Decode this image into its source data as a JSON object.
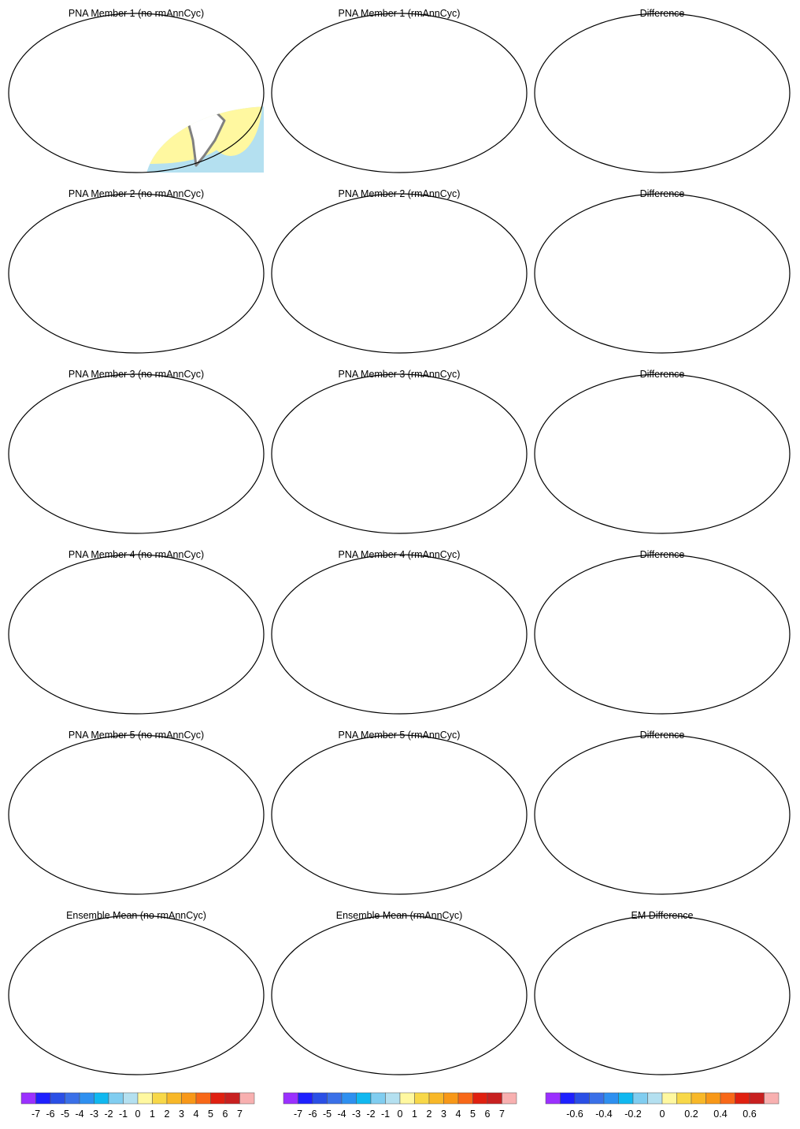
{
  "panels": [
    {
      "title": "PNA Member 1 (no rmAnnCyc)"
    },
    {
      "title": "PNA Member 1 (rmAnnCyc)"
    },
    {
      "title": "Difference"
    },
    {
      "title": "PNA Member 2 (no rmAnnCyc)"
    },
    {
      "title": "PNA Member 2 (rmAnnCyc)"
    },
    {
      "title": "Difference"
    },
    {
      "title": "PNA Member 3 (no rmAnnCyc)"
    },
    {
      "title": "PNA Member 3 (rmAnnCyc)"
    },
    {
      "title": "Difference"
    },
    {
      "title": "PNA Member 4 (no rmAnnCyc)"
    },
    {
      "title": "PNA Member 4 (rmAnnCyc)"
    },
    {
      "title": "Difference"
    },
    {
      "title": "PNA Member 5 (no rmAnnCyc)"
    },
    {
      "title": "PNA Member 5 (rmAnnCyc)"
    },
    {
      "title": "Difference"
    },
    {
      "title": "Ensemble Mean (no rmAnnCyc)"
    },
    {
      "title": "Ensemble Mean (rmAnnCyc)"
    },
    {
      "title": "EM Difference"
    }
  ],
  "colorbars": [
    {
      "colors": [
        "#9b30ff",
        "#1e20ff",
        "#2a4fe6",
        "#3a70e8",
        "#2e90f0",
        "#10b8f0",
        "#80cdf0",
        "#b4e0f0",
        "#fff8a0",
        "#f8d848",
        "#f8b828",
        "#f89818",
        "#f86818",
        "#e02010",
        "#c82020",
        "#f8b0b0"
      ],
      "labels": [
        -7,
        -6,
        -5,
        -4,
        -3,
        -2,
        -1,
        0,
        1,
        2,
        3,
        4,
        5,
        6,
        7
      ]
    },
    {
      "colors": [
        "#9b30ff",
        "#1e20ff",
        "#2a4fe6",
        "#3a70e8",
        "#2e90f0",
        "#10b8f0",
        "#80cdf0",
        "#b4e0f0",
        "#fff8a0",
        "#f8d848",
        "#f8b828",
        "#f89818",
        "#f86818",
        "#e02010",
        "#c82020",
        "#f8b0b0"
      ],
      "labels": [
        -7,
        -6,
        -5,
        -4,
        -3,
        -2,
        -1,
        0,
        1,
        2,
        3,
        4,
        5,
        6,
        7
      ]
    },
    {
      "colors": [
        "#9b30ff",
        "#1e20ff",
        "#2a4fe6",
        "#3a70e8",
        "#2e90f0",
        "#10b8f0",
        "#80cdf0",
        "#b4e0f0",
        "#fff8a0",
        "#f8d848",
        "#f8b828",
        "#f89818",
        "#f86818",
        "#e02010",
        "#c82020",
        "#f8b0b0"
      ],
      "labels": [
        -0.6,
        -0.4,
        -0.2,
        0,
        0.2,
        0.4,
        0.6
      ]
    }
  ]
}
